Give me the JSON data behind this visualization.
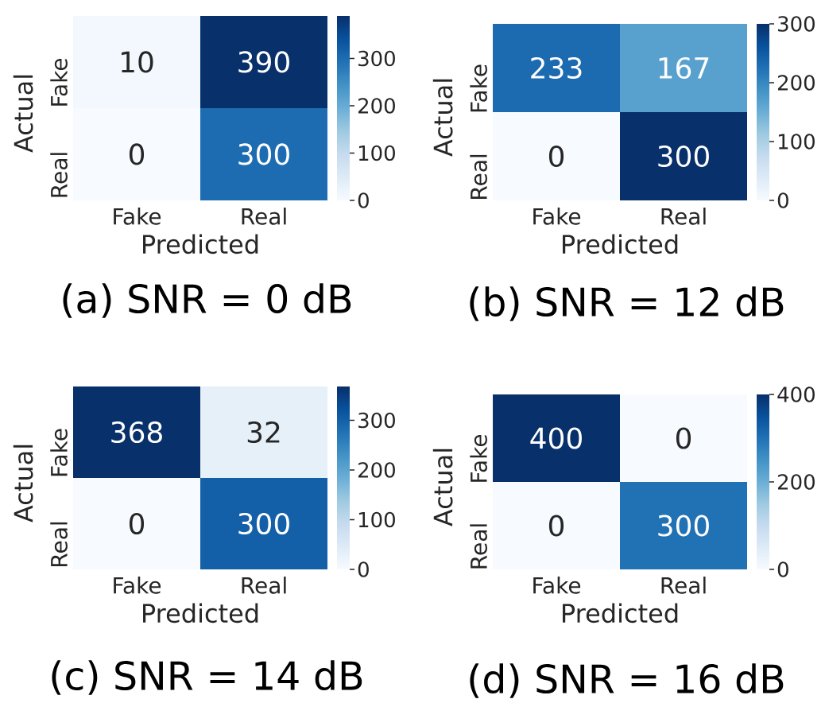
{
  "chart_data": [
    {
      "type": "heatmap",
      "title": "(a) SNR = 0 dB",
      "xlabel": "Predicted",
      "ylabel": "Actual",
      "categories": [
        "Fake",
        "Real"
      ],
      "y_categories": [
        "Fake",
        "Real"
      ],
      "cells": [
        [
          10,
          390
        ],
        [
          0,
          300
        ]
      ],
      "clim": [
        0,
        390
      ],
      "cticks": [
        0,
        100,
        200,
        300
      ],
      "data_labels": true
    },
    {
      "type": "heatmap",
      "title": "(b) SNR = 12 dB",
      "xlabel": "Predicted",
      "ylabel": "Actual",
      "categories": [
        "Fake",
        "Real"
      ],
      "y_categories": [
        "Fake",
        "Real"
      ],
      "cells": [
        [
          233,
          167
        ],
        [
          0,
          300
        ]
      ],
      "clim": [
        0,
        300
      ],
      "cticks": [
        0,
        100,
        200,
        300
      ],
      "data_labels": true
    },
    {
      "type": "heatmap",
      "title": "(c) SNR = 14 dB",
      "xlabel": "Predicted",
      "ylabel": "Actual",
      "categories": [
        "Fake",
        "Real"
      ],
      "y_categories": [
        "Fake",
        "Real"
      ],
      "cells": [
        [
          368,
          32
        ],
        [
          0,
          300
        ]
      ],
      "clim": [
        0,
        368
      ],
      "cticks": [
        0,
        100,
        200,
        300
      ],
      "data_labels": true
    },
    {
      "type": "heatmap",
      "title": "(d) SNR = 16 dB",
      "xlabel": "Predicted",
      "ylabel": "Actual",
      "categories": [
        "Fake",
        "Real"
      ],
      "y_categories": [
        "Fake",
        "Real"
      ],
      "cells": [
        [
          400,
          0
        ],
        [
          0,
          300
        ]
      ],
      "clim": [
        0,
        400
      ],
      "cticks": [
        0,
        200,
        400
      ],
      "data_labels": true
    }
  ]
}
